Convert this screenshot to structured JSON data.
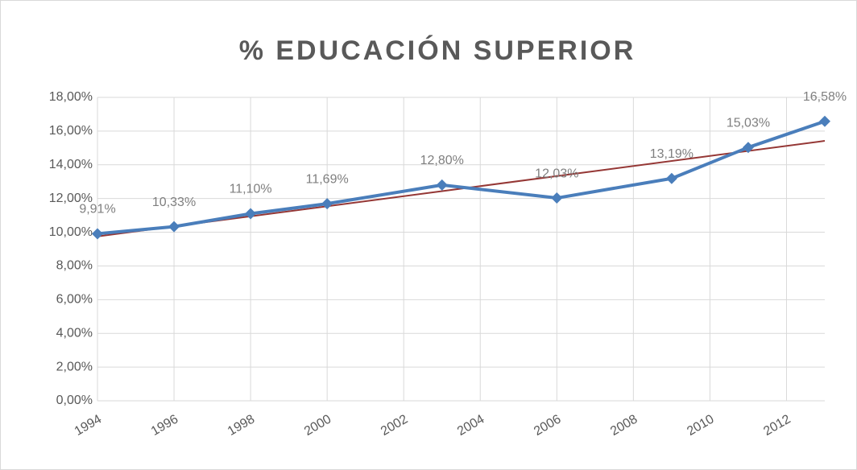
{
  "chart_data": {
    "type": "line",
    "title": "% EDUCACIÓN SUPERIOR",
    "x": [
      1994,
      1996,
      1998,
      2000,
      2003,
      2006,
      2009,
      2011,
      2013
    ],
    "series": [
      {
        "color": "#4a7ebb",
        "values": [
          9.91,
          10.33,
          11.1,
          11.69,
          12.8,
          12.03,
          13.19,
          15.03,
          16.58
        ],
        "value_labels": [
          "9,91%",
          "10,33%",
          "11,10%",
          "11,69%",
          "12,80%",
          "12,03%",
          "13,19%",
          "15,03%",
          "16,58%"
        ]
      }
    ],
    "trendline": {
      "color": "#953735",
      "x": [
        1994,
        2013
      ],
      "values": [
        9.75,
        15.42
      ]
    },
    "xlim": [
      1994,
      2013
    ],
    "xticks": [
      1994,
      1996,
      1998,
      2000,
      2002,
      2004,
      2006,
      2008,
      2010,
      2012
    ],
    "ylim": [
      0,
      18
    ],
    "yticks": [
      {
        "value": 0,
        "label": "0,00%"
      },
      {
        "value": 2,
        "label": "2,00%"
      },
      {
        "value": 4,
        "label": "4,00%"
      },
      {
        "value": 6,
        "label": "6,00%"
      },
      {
        "value": 8,
        "label": "8,00%"
      },
      {
        "value": 10,
        "label": "10,00%"
      },
      {
        "value": 12,
        "label": "12,00%"
      },
      {
        "value": 14,
        "label": "14,00%"
      },
      {
        "value": 16,
        "label": "16,00%"
      },
      {
        "value": 18,
        "label": "18,00%"
      }
    ],
    "grid": true
  }
}
